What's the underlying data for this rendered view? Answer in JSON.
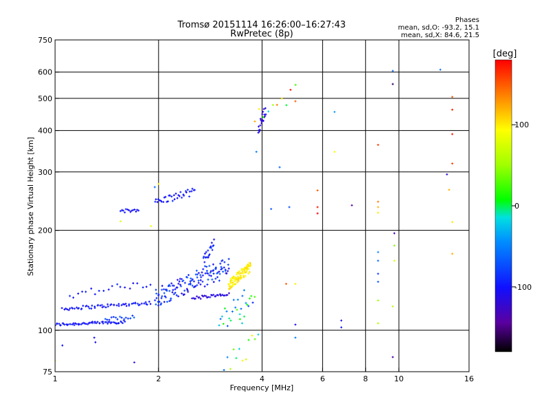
{
  "header": {
    "title_line1": "Tromsø 20151114 16:26:00–16:27:43",
    "title_line2": "RwPretec (8p)"
  },
  "phases_box": {
    "heading": "Phases",
    "line_o": "mean, sd,O: -93.2, 15.1",
    "line_x": "mean, sd,X:  84.6, 21.5"
  },
  "colorbar": {
    "label": "[deg]",
    "ticks": [
      {
        "value": 100,
        "label": "100"
      },
      {
        "value": 0,
        "label": "0"
      },
      {
        "value": -100,
        "label": "-100"
      }
    ],
    "range": [
      -180,
      180
    ]
  },
  "chart_data": {
    "type": "scatter",
    "xlabel": "Frequency [MHz]",
    "ylabel": "Stationary phase Virtual Height [km]",
    "x_scale": "log",
    "y_scale": "log",
    "xlim": [
      1,
      16
    ],
    "ylim": [
      75,
      750
    ],
    "x_ticks": [
      {
        "value": 1,
        "label": "1"
      },
      {
        "value": 2,
        "label": "2"
      },
      {
        "value": 4,
        "label": "4"
      },
      {
        "value": 6,
        "label": "6"
      },
      {
        "value": 8,
        "label": "8"
      },
      {
        "value": 10,
        "label": "10"
      },
      {
        "value": 16,
        "label": "16"
      }
    ],
    "y_ticks": [
      {
        "value": 75,
        "label": "75"
      },
      {
        "value": 100,
        "label": "100"
      },
      {
        "value": 200,
        "label": "200"
      },
      {
        "value": 300,
        "label": "300"
      },
      {
        "value": 400,
        "label": "400"
      },
      {
        "value": 500,
        "label": "500"
      },
      {
        "value": 600,
        "label": "600"
      },
      {
        "value": 750,
        "label": "750"
      }
    ],
    "x_grid": [
      2,
      4,
      6,
      8,
      10
    ],
    "y_grid": [
      100,
      200,
      300,
      400,
      500,
      600
    ],
    "color_scale": "phase in degrees, -180 black/purple → -100 blue → 0 green → 100 yellow → 180 red",
    "segments": [
      {
        "f0": 1.0,
        "f1": 1.6,
        "h0": 104,
        "h1": 106,
        "n": 60,
        "spread": 0.01,
        "phase": -100,
        "pj": 8
      },
      {
        "f0": 1.05,
        "f1": 1.9,
        "h0": 116,
        "h1": 121,
        "n": 60,
        "spread": 0.012,
        "phase": -100,
        "pj": 10
      },
      {
        "f0": 1.4,
        "f1": 1.7,
        "h0": 108,
        "h1": 110,
        "n": 15,
        "spread": 0.012,
        "phase": -75,
        "pj": 15
      },
      {
        "f0": 1.1,
        "f1": 1.9,
        "h0": 128,
        "h1": 138,
        "n": 20,
        "spread": 0.03,
        "phase": -100,
        "pj": 12
      },
      {
        "f0": 1.55,
        "f1": 1.75,
        "h0": 227,
        "h1": 232,
        "n": 14,
        "spread": 0.015,
        "phase": -100,
        "pj": 8
      },
      {
        "f0": 1.95,
        "f1": 2.55,
        "h0": 243,
        "h1": 262,
        "n": 35,
        "spread": 0.025,
        "phase": -100,
        "pj": 10
      },
      {
        "f0": 1.95,
        "f1": 3.2,
        "h0": 125,
        "h1": 155,
        "n": 140,
        "spread": 0.07,
        "phase": -90,
        "pj": 25
      },
      {
        "f0": 2.5,
        "f1": 3.2,
        "h0": 125,
        "h1": 128,
        "n": 30,
        "spread": 0.012,
        "phase": -115,
        "pj": 10
      },
      {
        "f0": 2.7,
        "f1": 2.9,
        "h0": 160,
        "h1": 185,
        "n": 20,
        "spread": 0.04,
        "phase": -95,
        "pj": 15
      },
      {
        "f0": 3.2,
        "f1": 3.7,
        "h0": 137,
        "h1": 155,
        "n": 90,
        "spread": 0.035,
        "phase": 100,
        "pj": 10
      },
      {
        "f0": 3.0,
        "f1": 3.8,
        "h0": 105,
        "h1": 130,
        "n": 25,
        "spread": 0.08,
        "phase": -30,
        "pj": 60
      },
      {
        "f0": 3.9,
        "f1": 4.1,
        "h0": 400,
        "h1": 465,
        "n": 20,
        "spread": 0.04,
        "phase": -115,
        "pj": 10
      },
      {
        "f0": 3.8,
        "f1": 5.0,
        "h0": 430,
        "h1": 520,
        "n": 10,
        "spread": 0.06,
        "phase": 60,
        "pj": 120
      },
      {
        "f0": 3.1,
        "f1": 3.9,
        "h0": 78,
        "h1": 92,
        "n": 12,
        "spread": 0.08,
        "phase": 40,
        "pj": 100
      }
    ],
    "points": [
      {
        "x": 1.05,
        "y": 90,
        "phase": -100
      },
      {
        "x": 1.3,
        "y": 95,
        "phase": -105
      },
      {
        "x": 1.31,
        "y": 92,
        "phase": -105
      },
      {
        "x": 1.7,
        "y": 80,
        "phase": -120
      },
      {
        "x": 1.0,
        "y": 81,
        "phase": 100
      },
      {
        "x": 2.0,
        "y": 276,
        "phase": 100
      },
      {
        "x": 1.95,
        "y": 270,
        "phase": -60
      },
      {
        "x": 1.55,
        "y": 213,
        "phase": 80
      },
      {
        "x": 1.9,
        "y": 206,
        "phase": 90
      },
      {
        "x": 3.5,
        "y": 105,
        "phase": -20
      },
      {
        "x": 3.55,
        "y": 110,
        "phase": 0
      },
      {
        "x": 3.45,
        "y": 108,
        "phase": 10
      },
      {
        "x": 3.85,
        "y": 345,
        "phase": -50
      },
      {
        "x": 4.5,
        "y": 310,
        "phase": -60
      },
      {
        "x": 4.8,
        "y": 235,
        "phase": -70
      },
      {
        "x": 4.25,
        "y": 232,
        "phase": -70
      },
      {
        "x": 4.7,
        "y": 138,
        "phase": 150
      },
      {
        "x": 5.0,
        "y": 138,
        "phase": 100
      },
      {
        "x": 5.0,
        "y": 104,
        "phase": -110
      },
      {
        "x": 5.0,
        "y": 95,
        "phase": -50
      },
      {
        "x": 5.0,
        "y": 490,
        "phase": 150
      },
      {
        "x": 5.8,
        "y": 264,
        "phase": 150
      },
      {
        "x": 5.8,
        "y": 235,
        "phase": 170
      },
      {
        "x": 5.8,
        "y": 225,
        "phase": 180
      },
      {
        "x": 6.5,
        "y": 455,
        "phase": -40
      },
      {
        "x": 6.5,
        "y": 345,
        "phase": 90
      },
      {
        "x": 6.8,
        "y": 107,
        "phase": -110
      },
      {
        "x": 6.8,
        "y": 102,
        "phase": -100
      },
      {
        "x": 7.3,
        "y": 238,
        "phase": -140
      },
      {
        "x": 8.7,
        "y": 362,
        "phase": 160
      },
      {
        "x": 8.7,
        "y": 244,
        "phase": 140
      },
      {
        "x": 8.7,
        "y": 235,
        "phase": 120
      },
      {
        "x": 8.7,
        "y": 226,
        "phase": 100
      },
      {
        "x": 8.7,
        "y": 172,
        "phase": -50
      },
      {
        "x": 8.7,
        "y": 162,
        "phase": -60
      },
      {
        "x": 8.7,
        "y": 148,
        "phase": -80
      },
      {
        "x": 8.7,
        "y": 140,
        "phase": -70
      },
      {
        "x": 8.7,
        "y": 123,
        "phase": 50
      },
      {
        "x": 8.7,
        "y": 105,
        "phase": 60
      },
      {
        "x": 9.6,
        "y": 605,
        "phase": -60
      },
      {
        "x": 9.6,
        "y": 552,
        "phase": -160
      },
      {
        "x": 9.7,
        "y": 196,
        "phase": -130
      },
      {
        "x": 9.7,
        "y": 180,
        "phase": 40
      },
      {
        "x": 9.7,
        "y": 162,
        "phase": 80
      },
      {
        "x": 9.6,
        "y": 118,
        "phase": 60
      },
      {
        "x": 9.6,
        "y": 83,
        "phase": -140
      },
      {
        "x": 13.2,
        "y": 610,
        "phase": -60
      },
      {
        "x": 14.3,
        "y": 505,
        "phase": 150
      },
      {
        "x": 14.3,
        "y": 462,
        "phase": 170
      },
      {
        "x": 14.3,
        "y": 390,
        "phase": 175
      },
      {
        "x": 14.3,
        "y": 318,
        "phase": 160
      },
      {
        "x": 14.3,
        "y": 170,
        "phase": 120
      },
      {
        "x": 14.3,
        "y": 212,
        "phase": 100
      },
      {
        "x": 13.8,
        "y": 295,
        "phase": -120
      },
      {
        "x": 14.0,
        "y": 265,
        "phase": 120
      }
    ]
  }
}
